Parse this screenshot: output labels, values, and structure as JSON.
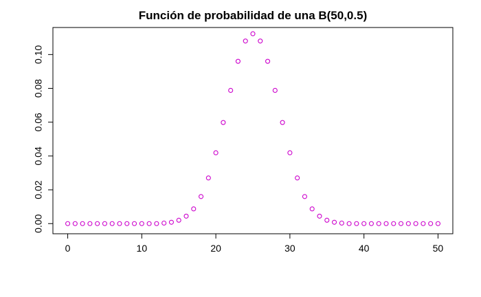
{
  "chart_data": {
    "type": "scatter",
    "title": "Función de probabilidad de una B(50,0.5)",
    "xlabel": "",
    "ylabel": "",
    "xlim": [
      -2,
      52
    ],
    "ylim": [
      -0.006,
      0.116
    ],
    "x_ticks": [
      0,
      10,
      20,
      30,
      40,
      50
    ],
    "x_tick_labels": [
      "0",
      "10",
      "20",
      "30",
      "40",
      "50"
    ],
    "y_ticks": [
      0.0,
      0.02,
      0.04,
      0.06,
      0.08,
      0.1
    ],
    "y_tick_labels": [
      "0.00",
      "0.02",
      "0.04",
      "0.06",
      "0.08",
      "0.10"
    ],
    "grid": false,
    "marker": "open-circle",
    "color": "#cc00cc",
    "series": [
      {
        "x": [
          0,
          1,
          2,
          3,
          4,
          5,
          6,
          7,
          8,
          9,
          10,
          11,
          12,
          13,
          14,
          15,
          16,
          17,
          18,
          19,
          20,
          21,
          22,
          23,
          24,
          25,
          26,
          27,
          28,
          29,
          30,
          31,
          32,
          33,
          34,
          35,
          36,
          37,
          38,
          39,
          40,
          41,
          42,
          43,
          44,
          45,
          46,
          47,
          48,
          49,
          50
        ],
        "y": [
          0,
          0,
          0,
          0,
          0,
          0,
          0,
          0,
          0,
          0,
          0.0,
          0.0,
          0.0,
          0.0003,
          0.0008,
          0.002,
          0.0044,
          0.0087,
          0.016,
          0.027,
          0.0419,
          0.0598,
          0.0788,
          0.096,
          0.108,
          0.1123,
          0.108,
          0.096,
          0.0788,
          0.0598,
          0.0419,
          0.027,
          0.016,
          0.0087,
          0.0044,
          0.002,
          0.0008,
          0.0003,
          0.0,
          0.0,
          0.0,
          0,
          0,
          0,
          0,
          0,
          0,
          0,
          0,
          0,
          0
        ]
      }
    ]
  }
}
